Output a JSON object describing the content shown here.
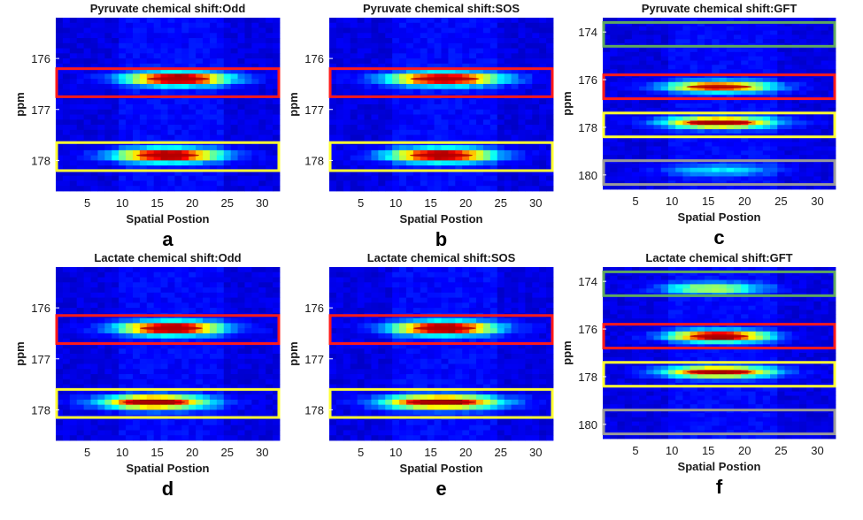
{
  "figure": {
    "ylabel": "ppm",
    "xlabel": "Spatial Postion",
    "colors": {
      "background": "#1e2d8c",
      "red_box": "#ff1a1a",
      "yellow_box": "#ffff33",
      "green_box": "#5fa85f",
      "gray_box": "#9a9a9a"
    }
  },
  "chart_data": [
    {
      "type": "heatmap",
      "panel": "a",
      "title": "Pyruvate chemical shift:Odd",
      "xlabel": "Spatial Postion",
      "ylabel": "ppm",
      "xlim": [
        1,
        32
      ],
      "ylim": [
        175.2,
        178.6
      ],
      "xticks": [
        5,
        10,
        15,
        20,
        25,
        30
      ],
      "yticks": [
        176,
        177,
        178
      ],
      "peaks": [
        {
          "ppm": 176.4,
          "center": 18,
          "width": 5,
          "intensity": 1.0
        },
        {
          "ppm": 177.9,
          "center": 16.5,
          "width": 5,
          "intensity": 1.0
        }
      ],
      "boxes": [
        {
          "color": "red",
          "ppm_from": 176.2,
          "ppm_to": 176.75
        },
        {
          "color": "yellow",
          "ppm_from": 177.65,
          "ppm_to": 178.2
        }
      ]
    },
    {
      "type": "heatmap",
      "panel": "b",
      "title": "Pyruvate chemical shift:SOS",
      "xlabel": "Spatial Postion",
      "ylabel": "ppm",
      "xlim": [
        1,
        32
      ],
      "ylim": [
        175.2,
        178.6
      ],
      "xticks": [
        5,
        10,
        15,
        20,
        25,
        30
      ],
      "yticks": [
        176,
        177,
        178
      ],
      "peaks": [
        {
          "ppm": 176.4,
          "center": 17,
          "width": 5.5,
          "intensity": 0.95
        },
        {
          "ppm": 177.9,
          "center": 16.5,
          "width": 5,
          "intensity": 1.0
        }
      ],
      "boxes": [
        {
          "color": "red",
          "ppm_from": 176.2,
          "ppm_to": 176.75
        },
        {
          "color": "yellow",
          "ppm_from": 177.65,
          "ppm_to": 178.2
        }
      ]
    },
    {
      "type": "heatmap",
      "panel": "c",
      "title": "Pyruvate chemical shift:GFT",
      "xlabel": "Spatial Postion",
      "ylabel": "ppm",
      "xlim": [
        1,
        32
      ],
      "ylim": [
        173.4,
        180.6
      ],
      "xticks": [
        5,
        10,
        15,
        20,
        25,
        30
      ],
      "yticks": [
        174,
        176,
        178,
        180
      ],
      "peaks": [
        {
          "ppm": 176.3,
          "center": 16.5,
          "width": 5,
          "intensity": 0.8
        },
        {
          "ppm": 177.8,
          "center": 16.5,
          "width": 5,
          "intensity": 0.95
        },
        {
          "ppm": 179.8,
          "center": 16.5,
          "width": 5,
          "intensity": 0.25
        }
      ],
      "boxes": [
        {
          "color": "green",
          "ppm_from": 173.6,
          "ppm_to": 174.6
        },
        {
          "color": "red",
          "ppm_from": 175.8,
          "ppm_to": 176.8
        },
        {
          "color": "yellow",
          "ppm_from": 177.4,
          "ppm_to": 178.4
        },
        {
          "color": "gray",
          "ppm_from": 179.4,
          "ppm_to": 180.4
        }
      ]
    },
    {
      "type": "heatmap",
      "panel": "d",
      "title": "Lactate chemical shift:Odd",
      "xlabel": "Spatial Postion",
      "ylabel": "ppm",
      "xlim": [
        1,
        32
      ],
      "ylim": [
        175.2,
        178.6
      ],
      "xticks": [
        5,
        10,
        15,
        20,
        25,
        30
      ],
      "yticks": [
        176,
        177,
        178
      ],
      "peaks": [
        {
          "ppm": 176.4,
          "center": 17,
          "width": 5,
          "intensity": 1.0
        },
        {
          "ppm": 177.85,
          "center": 14.5,
          "width": 5,
          "intensity": 1.0
        }
      ],
      "boxes": [
        {
          "color": "red",
          "ppm_from": 176.15,
          "ppm_to": 176.7
        },
        {
          "color": "yellow",
          "ppm_from": 177.6,
          "ppm_to": 178.15
        }
      ]
    },
    {
      "type": "heatmap",
      "panel": "e",
      "title": "Lactate chemical shift:SOS",
      "xlabel": "Spatial Postion",
      "ylabel": "ppm",
      "xlim": [
        1,
        32
      ],
      "ylim": [
        175.2,
        178.6
      ],
      "xticks": [
        5,
        10,
        15,
        20,
        25,
        30
      ],
      "yticks": [
        176,
        177,
        178
      ],
      "peaks": [
        {
          "ppm": 176.4,
          "center": 17,
          "width": 5,
          "intensity": 1.0
        },
        {
          "ppm": 177.85,
          "center": 16.5,
          "width": 5.5,
          "intensity": 1.0
        }
      ],
      "boxes": [
        {
          "color": "red",
          "ppm_from": 176.15,
          "ppm_to": 176.7
        },
        {
          "color": "yellow",
          "ppm_from": 177.6,
          "ppm_to": 178.15
        }
      ]
    },
    {
      "type": "heatmap",
      "panel": "f",
      "title": "Lactate chemical shift:GFT",
      "xlabel": "Spatial Postion",
      "ylabel": "ppm",
      "xlim": [
        1,
        32
      ],
      "ylim": [
        173.4,
        180.6
      ],
      "xticks": [
        5,
        10,
        15,
        20,
        25,
        30
      ],
      "yticks": [
        174,
        176,
        178,
        180
      ],
      "peaks": [
        {
          "ppm": 174.3,
          "center": 15.5,
          "width": 4.5,
          "intensity": 0.5
        },
        {
          "ppm": 176.3,
          "center": 16.5,
          "width": 4.5,
          "intensity": 1.0
        },
        {
          "ppm": 177.8,
          "center": 16.5,
          "width": 5,
          "intensity": 0.9
        }
      ],
      "boxes": [
        {
          "color": "green",
          "ppm_from": 173.6,
          "ppm_to": 174.6
        },
        {
          "color": "red",
          "ppm_from": 175.8,
          "ppm_to": 176.8
        },
        {
          "color": "yellow",
          "ppm_from": 177.4,
          "ppm_to": 178.4
        },
        {
          "color": "gray",
          "ppm_from": 179.4,
          "ppm_to": 180.4
        }
      ]
    }
  ]
}
